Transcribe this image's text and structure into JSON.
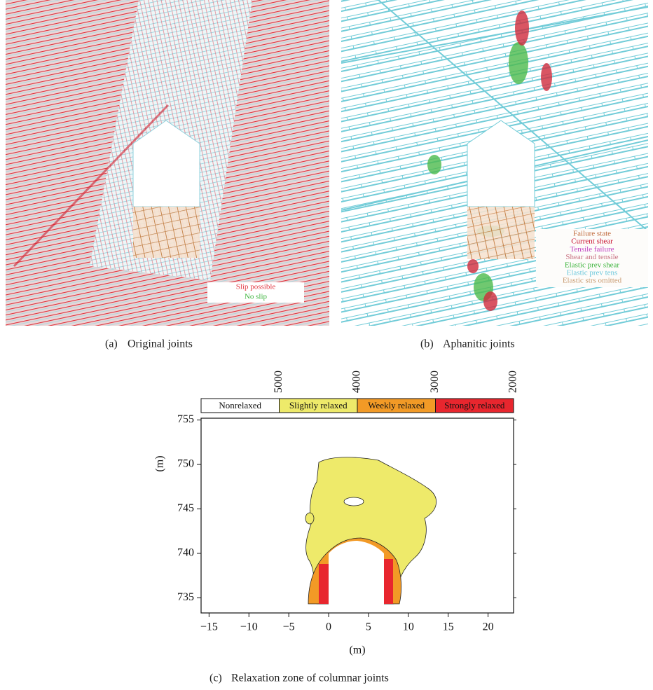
{
  "panels": [
    {
      "label": "(a)",
      "caption": "Original joints",
      "legend": [
        {
          "label": "Slip possible",
          "color": "#e23a44"
        },
        {
          "label": "No slip",
          "color": "#3fb53f"
        }
      ]
    },
    {
      "label": "(b)",
      "caption": "Aphanitic joints",
      "legend": [
        {
          "label": "Failure state",
          "color": "#c06a3c"
        },
        {
          "label": "Current shear",
          "color": "#c8102e"
        },
        {
          "label": "Tensile failure",
          "color": "#c040c0"
        },
        {
          "label": "Shear and tensile",
          "color": "#c87080"
        },
        {
          "label": "Elastic prev shear",
          "color": "#3cb43c"
        },
        {
          "label": "Elastic prev tens",
          "color": "#6cc8dc"
        },
        {
          "label": "Elastic strs omitted",
          "color": "#c89a70"
        }
      ]
    }
  ],
  "chart_data": {
    "type": "contour",
    "label": "(c)",
    "caption": "Relaxation zone of columnar joints",
    "xlabel": "(m)",
    "ylabel": "(m)",
    "xlim": [
      -16,
      23.2
    ],
    "ylim": [
      733.3,
      755.2
    ],
    "xticks": [
      {
        "value": -15,
        "label": "−15"
      },
      {
        "value": -10,
        "label": "−10"
      },
      {
        "value": -5,
        "label": "−5"
      },
      0,
      5,
      10,
      15,
      20
    ],
    "yticks": [
      735,
      740,
      745,
      750,
      755
    ],
    "colorbar": {
      "clim": [
        6000,
        2000
      ],
      "ticks": [
        5000,
        4000,
        3000,
        2000
      ],
      "labels": [
        "Nonrelaxed",
        "Slightly relaxed",
        "Weekly relaxed",
        "Strongly relaxed"
      ],
      "colors": [
        "#ffffff",
        "#eeea6a",
        "#f29a26",
        "#e8262e"
      ]
    }
  }
}
